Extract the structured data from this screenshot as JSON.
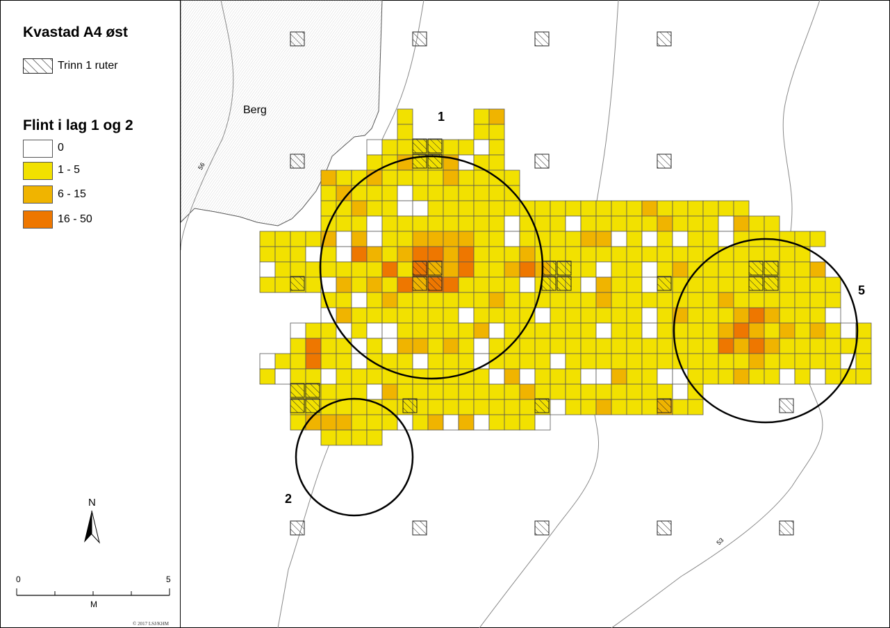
{
  "legend": {
    "title": "Kvastad A4 øst",
    "trinn_label": "Trinn 1 ruter",
    "flint_title": "Flint i lag 1 og 2",
    "classes": [
      {
        "label": "0",
        "color": "#ffffff"
      },
      {
        "label": "1 - 5",
        "color": "#f2e100"
      },
      {
        "label": "6 - 15",
        "color": "#f0b400"
      },
      {
        "label": "16 - 50",
        "color": "#ee7700"
      }
    ],
    "north_label": "N",
    "scale": {
      "min_label": "0",
      "max_label": "5",
      "unit_label": "M"
    },
    "copyright": "© 2017 LSJ/KHM"
  },
  "map": {
    "berg_label": "Berg",
    "contour_labels": [
      "56",
      "53"
    ],
    "cluster_labels": [
      "1",
      "2",
      "5"
    ]
  }
}
